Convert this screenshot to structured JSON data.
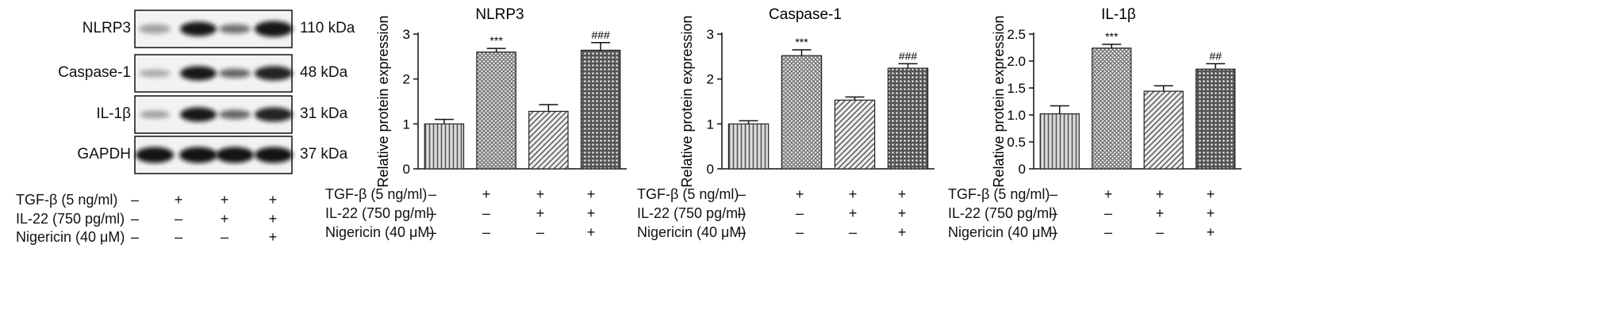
{
  "western_blot": {
    "rows": [
      {
        "protein": "NLRP3",
        "kda": "110 kDa"
      },
      {
        "protein": "Caspase-1",
        "kda": "48 kDa"
      },
      {
        "protein": "IL-1β",
        "kda": "31 kDa"
      },
      {
        "protein": "GAPDH",
        "kda": "37 kDa"
      }
    ]
  },
  "conditions": [
    {
      "label": "TGF-β (5 ng/ml)",
      "signs": [
        "–",
        "+",
        "+",
        "+"
      ]
    },
    {
      "label": "IL-22 (750 pg/ml)",
      "signs": [
        "–",
        "–",
        "+",
        "+"
      ]
    },
    {
      "label": "Nigericin (40 μM)",
      "signs": [
        "–",
        "–",
        "–",
        "+"
      ]
    }
  ],
  "chart_data": [
    {
      "type": "bar",
      "title": "NLRP3",
      "ylabel": "Relative protein expression",
      "ylim": [
        0,
        3
      ],
      "yticks": [
        "0",
        "1",
        "2",
        "3"
      ],
      "values": [
        1.0,
        2.6,
        1.28,
        2.64
      ],
      "errors": [
        0.1,
        0.08,
        0.15,
        0.17
      ],
      "annotations": [
        "",
        "***",
        "",
        "###"
      ]
    },
    {
      "type": "bar",
      "title": "Caspase-1",
      "ylabel": "Relative protein expression",
      "ylim": [
        0,
        3
      ],
      "yticks": [
        "0",
        "1",
        "2",
        "3"
      ],
      "values": [
        1.0,
        2.52,
        1.53,
        2.24
      ],
      "errors": [
        0.07,
        0.13,
        0.07,
        0.1
      ],
      "annotations": [
        "",
        "***",
        "",
        "###"
      ]
    },
    {
      "type": "bar",
      "title": "IL-1β",
      "ylabel": "Relative protein expression",
      "ylim": [
        0,
        2.5
      ],
      "yticks": [
        "0",
        "0.5",
        "1.0",
        "1.5",
        "2.0",
        "2.5"
      ],
      "values": [
        1.02,
        2.24,
        1.44,
        1.85
      ],
      "errors": [
        0.15,
        0.07,
        0.1,
        0.1
      ],
      "annotations": [
        "",
        "***",
        "",
        "##"
      ]
    }
  ]
}
